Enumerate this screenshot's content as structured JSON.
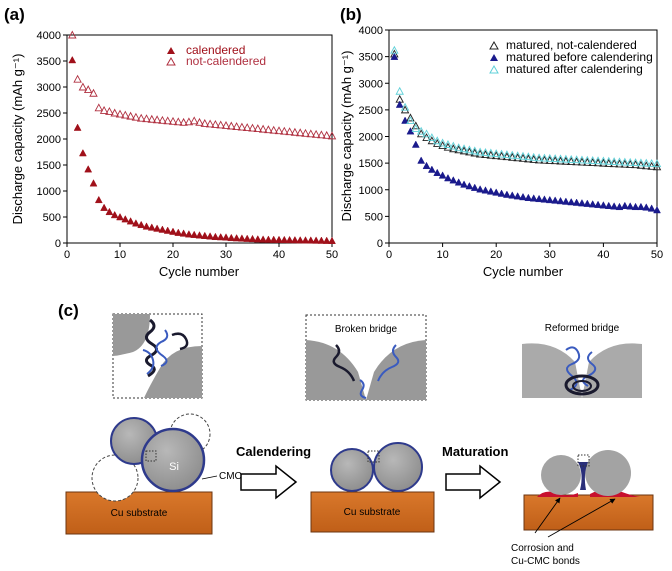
{
  "panels": {
    "a": "(a)",
    "b": "(b)",
    "c": "(c)"
  },
  "chart_data": [
    {
      "type": "scatter",
      "xlabel": "Cycle number",
      "ylabel": "Discharge capacity (mAh g⁻¹)",
      "xlim": [
        0,
        50
      ],
      "ylim": [
        0,
        4000
      ],
      "xticks": [
        0,
        10,
        20,
        30,
        40,
        50
      ],
      "yticks": [
        0,
        500,
        1000,
        1500,
        2000,
        2500,
        3000,
        3500,
        4000
      ],
      "legend_position": "top-right",
      "series": [
        {
          "name": "calendered",
          "marker": "filled-triangle",
          "color": "#a0101a",
          "x": [
            1,
            2,
            3,
            4,
            5,
            6,
            7,
            8,
            9,
            10,
            11,
            12,
            13,
            14,
            15,
            16,
            17,
            18,
            19,
            20,
            21,
            22,
            23,
            24,
            25,
            26,
            27,
            28,
            29,
            30,
            31,
            32,
            33,
            34,
            35,
            36,
            37,
            38,
            39,
            40,
            41,
            42,
            43,
            44,
            45,
            46,
            47,
            48,
            49,
            50
          ],
          "values": [
            3520,
            2220,
            1730,
            1420,
            1150,
            830,
            680,
            600,
            540,
            500,
            460,
            420,
            380,
            350,
            320,
            300,
            280,
            260,
            240,
            220,
            200,
            185,
            170,
            160,
            150,
            140,
            130,
            120,
            115,
            110,
            100,
            95,
            90,
            85,
            80,
            75,
            70,
            68,
            66,
            64,
            62,
            60,
            58,
            56,
            54,
            52,
            50,
            48,
            46,
            44
          ]
        },
        {
          "name": "not-calendered",
          "marker": "open-triangle",
          "color": "#b03040",
          "x": [
            1,
            2,
            3,
            4,
            5,
            6,
            7,
            8,
            9,
            10,
            11,
            12,
            13,
            14,
            15,
            16,
            17,
            18,
            19,
            20,
            21,
            22,
            23,
            24,
            25,
            26,
            27,
            28,
            29,
            30,
            31,
            32,
            33,
            34,
            35,
            36,
            37,
            38,
            39,
            40,
            41,
            42,
            43,
            44,
            45,
            46,
            47,
            48,
            49,
            50
          ],
          "values": [
            4000,
            3150,
            3000,
            2950,
            2880,
            2600,
            2550,
            2530,
            2500,
            2480,
            2460,
            2440,
            2420,
            2400,
            2390,
            2380,
            2370,
            2360,
            2350,
            2340,
            2330,
            2320,
            2330,
            2350,
            2320,
            2300,
            2290,
            2280,
            2270,
            2260,
            2250,
            2240,
            2230,
            2220,
            2210,
            2200,
            2190,
            2180,
            2170,
            2160,
            2150,
            2140,
            2130,
            2120,
            2110,
            2100,
            2090,
            2080,
            2070,
            2060
          ]
        }
      ]
    },
    {
      "type": "scatter",
      "xlabel": "Cycle number",
      "ylabel": "Discharge capacity (mAh g⁻¹)",
      "xlim": [
        0,
        50
      ],
      "ylim": [
        0,
        4000
      ],
      "xticks": [
        0,
        10,
        20,
        30,
        40,
        50
      ],
      "yticks": [
        0,
        500,
        1000,
        1500,
        2000,
        2500,
        3000,
        3500,
        4000
      ],
      "legend_position": "top-right",
      "series": [
        {
          "name": "matured, not-calendered",
          "marker": "open-triangle",
          "color": "#222222",
          "x": [
            1,
            2,
            3,
            4,
            5,
            6,
            7,
            8,
            9,
            10,
            11,
            12,
            13,
            14,
            15,
            16,
            17,
            18,
            19,
            20,
            21,
            22,
            23,
            24,
            25,
            26,
            27,
            28,
            29,
            30,
            31,
            32,
            33,
            34,
            35,
            36,
            37,
            38,
            39,
            40,
            41,
            42,
            43,
            44,
            45,
            46,
            47,
            48,
            49,
            50
          ],
          "values": [
            3550,
            2700,
            2500,
            2350,
            2200,
            2050,
            1980,
            1920,
            1870,
            1830,
            1800,
            1770,
            1750,
            1730,
            1710,
            1690,
            1670,
            1660,
            1650,
            1640,
            1630,
            1620,
            1610,
            1600,
            1590,
            1580,
            1570,
            1560,
            1555,
            1550,
            1545,
            1540,
            1535,
            1530,
            1525,
            1520,
            1515,
            1510,
            1505,
            1500,
            1495,
            1490,
            1485,
            1480,
            1475,
            1470,
            1460,
            1450,
            1440,
            1430
          ]
        },
        {
          "name": "matured before calendering",
          "marker": "filled-triangle",
          "color": "#1a1a8c",
          "x": [
            1,
            2,
            3,
            4,
            5,
            6,
            7,
            8,
            9,
            10,
            11,
            12,
            13,
            14,
            15,
            16,
            17,
            18,
            19,
            20,
            21,
            22,
            23,
            24,
            25,
            26,
            27,
            28,
            29,
            30,
            31,
            32,
            33,
            34,
            35,
            36,
            37,
            38,
            39,
            40,
            41,
            42,
            43,
            44,
            45,
            46,
            47,
            48,
            49,
            50
          ],
          "values": [
            3500,
            2600,
            2300,
            2100,
            1850,
            1550,
            1450,
            1380,
            1320,
            1270,
            1220,
            1180,
            1140,
            1100,
            1070,
            1040,
            1010,
            990,
            970,
            950,
            930,
            910,
            895,
            880,
            865,
            850,
            840,
            830,
            820,
            810,
            800,
            790,
            780,
            770,
            760,
            750,
            740,
            730,
            720,
            710,
            700,
            690,
            680,
            700,
            690,
            680,
            680,
            670,
            650,
            620
          ]
        },
        {
          "name": "matured after calendering",
          "marker": "open-triangle",
          "color": "#5fd0d8",
          "x": [
            1,
            2,
            3,
            4,
            5,
            6,
            7,
            8,
            9,
            10,
            11,
            12,
            13,
            14,
            15,
            16,
            17,
            18,
            19,
            20,
            21,
            22,
            23,
            24,
            25,
            26,
            27,
            28,
            29,
            30,
            31,
            32,
            33,
            34,
            35,
            36,
            37,
            38,
            39,
            40,
            41,
            42,
            43,
            44,
            45,
            46,
            47,
            48,
            49,
            50
          ],
          "values": [
            3620,
            2850,
            2550,
            2300,
            2150,
            2100,
            2050,
            1980,
            1920,
            1880,
            1850,
            1820,
            1790,
            1770,
            1750,
            1730,
            1710,
            1700,
            1690,
            1680,
            1670,
            1660,
            1650,
            1640,
            1630,
            1620,
            1610,
            1600,
            1595,
            1590,
            1585,
            1580,
            1575,
            1570,
            1565,
            1560,
            1555,
            1550,
            1545,
            1540,
            1535,
            1530,
            1525,
            1520,
            1515,
            1510,
            1505,
            1500,
            1495,
            1490
          ]
        }
      ]
    }
  ],
  "diagram": {
    "broken_bridge": "Broken bridge",
    "reformed_bridge": "Reformed bridge",
    "si": "Si",
    "cmc": "CMC",
    "cu_substrate": "Cu substrate",
    "calendering": "Calendering",
    "maturation": "Maturation",
    "corrosion_line1": "Corrosion and",
    "corrosion_line2": "Cu-CMC bonds"
  }
}
